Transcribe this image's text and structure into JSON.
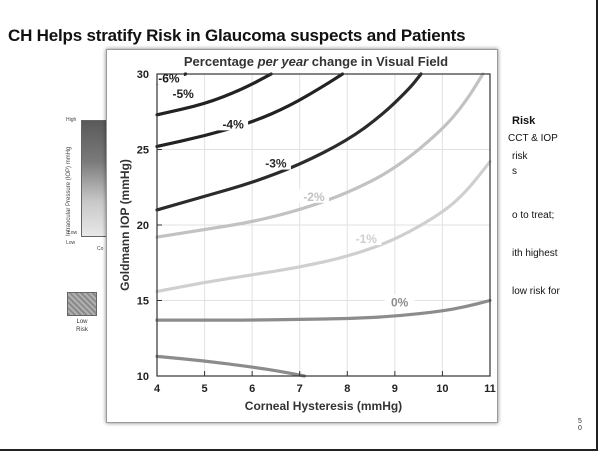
{
  "slide": {
    "title": "CH Helps stratify Risk in Glaucoma suspects and Patients",
    "page_number_top": "5",
    "page_number_bottom": "0"
  },
  "background_diagram": {
    "y_axis_label": "Intraocular Pressure (IOP) mmHg",
    "high_label": "High",
    "low_label": "Low",
    "x_low_label": "Low",
    "x_partial_label": "Co",
    "swatch_label_line1": "Low",
    "swatch_label_line2": "Risk"
  },
  "right_fragments": {
    "heading": "Risk",
    "line1": "CCT & IOP",
    "line2": "risk",
    "line3": "s",
    "line4": "o to treat;",
    "line5": "ith highest",
    "line6": "low risk for"
  },
  "chart_data": {
    "type": "line",
    "title": "Percentage per year change in Visual Field",
    "title_parts": [
      "Percentage ",
      "per year",
      " change in Visual Field"
    ],
    "xlabel": "Corneal Hysteresis (mmHg)",
    "ylabel": "Goldmann IOP (mmHg)",
    "xlim": [
      4,
      11
    ],
    "ylim": [
      10,
      30
    ],
    "x_ticks": [
      4,
      5,
      6,
      7,
      8,
      9,
      10,
      11
    ],
    "y_ticks": [
      10,
      15,
      20,
      25,
      30
    ],
    "grid": true,
    "series": [
      {
        "name": "-6%",
        "color": "#1a1a1a",
        "points": [
          [
            4.0,
            29.4
          ],
          [
            4.6,
            30.0
          ]
        ],
        "label_at": [
          4.25,
          29.65
        ]
      },
      {
        "name": "-5%",
        "color": "#222222",
        "points": [
          [
            4.0,
            27.3
          ],
          [
            5.0,
            28.0
          ],
          [
            5.8,
            29.0
          ],
          [
            6.4,
            30.0
          ]
        ],
        "label_at": [
          4.55,
          28.6
        ]
      },
      {
        "name": "-4%",
        "color": "#222222",
        "points": [
          [
            4.0,
            25.2
          ],
          [
            5.0,
            25.9
          ],
          [
            6.0,
            26.8
          ],
          [
            6.8,
            27.9
          ],
          [
            7.5,
            29.2
          ],
          [
            7.9,
            30.0
          ]
        ],
        "label_at": [
          5.6,
          26.6
        ]
      },
      {
        "name": "-3%",
        "color": "#2b2b2b",
        "points": [
          [
            4.0,
            21.0
          ],
          [
            5.0,
            21.9
          ],
          [
            6.0,
            22.8
          ],
          [
            7.0,
            24.0
          ],
          [
            8.0,
            25.6
          ],
          [
            8.7,
            27.2
          ],
          [
            9.3,
            29.0
          ],
          [
            9.55,
            30.0
          ]
        ],
        "label_at": [
          6.5,
          24.0
        ]
      },
      {
        "name": "-2%",
        "color": "#c2c2c2",
        "points": [
          [
            4.0,
            19.2
          ],
          [
            5.0,
            19.7
          ],
          [
            6.0,
            20.2
          ],
          [
            7.0,
            21.0
          ],
          [
            8.0,
            22.1
          ],
          [
            9.0,
            23.7
          ],
          [
            10.0,
            26.3
          ],
          [
            10.5,
            28.2
          ],
          [
            10.85,
            30.0
          ]
        ],
        "label_at": [
          7.3,
          21.8
        ]
      },
      {
        "name": "-1%",
        "color": "#cfcfcf",
        "points": [
          [
            4.0,
            15.6
          ],
          [
            5.0,
            16.2
          ],
          [
            6.0,
            16.7
          ],
          [
            7.0,
            17.2
          ],
          [
            8.0,
            17.9
          ],
          [
            9.0,
            19.0
          ],
          [
            10.0,
            20.8
          ],
          [
            10.5,
            22.2
          ],
          [
            11.0,
            24.2
          ]
        ],
        "label_at": [
          8.4,
          19.0
        ]
      },
      {
        "name": "0%",
        "color": "#8c8c8c",
        "points": [
          [
            4.0,
            13.7
          ],
          [
            5.0,
            13.7
          ],
          [
            6.0,
            13.7
          ],
          [
            7.0,
            13.75
          ],
          [
            8.0,
            13.8
          ],
          [
            9.0,
            13.95
          ],
          [
            10.0,
            14.3
          ],
          [
            10.5,
            14.6
          ],
          [
            11.0,
            15.0
          ]
        ],
        "label_at": [
          9.1,
          14.8
        ]
      },
      {
        "name": "",
        "color": "#8c8c8c",
        "points": [
          [
            4.0,
            11.3
          ],
          [
            5.0,
            11.0
          ],
          [
            6.0,
            10.6
          ],
          [
            6.6,
            10.3
          ],
          [
            7.1,
            10.0
          ]
        ],
        "label_at": null
      }
    ]
  }
}
